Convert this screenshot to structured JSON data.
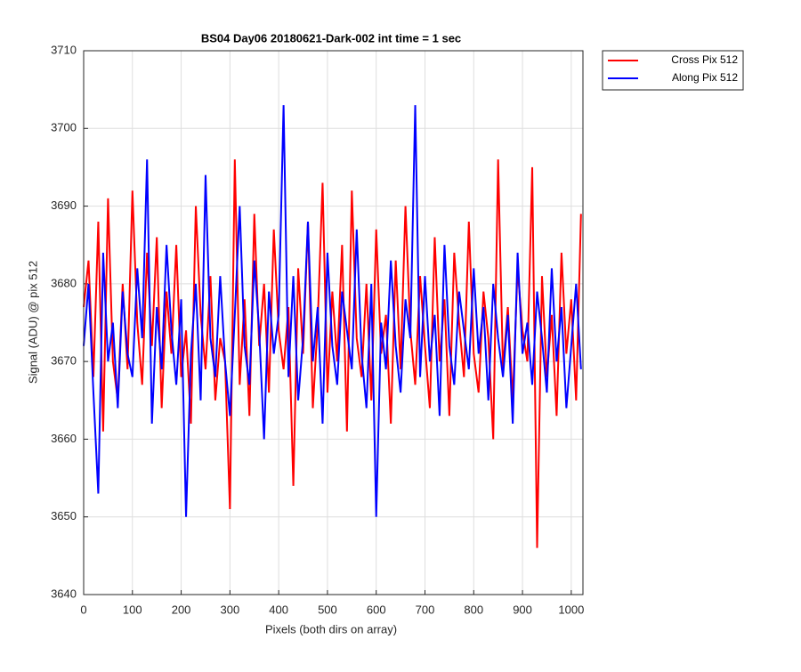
{
  "chart_data": {
    "type": "line",
    "title": "BS04 Day06 20180621-Dark-002 int time = 1 sec",
    "xlabel": "Pixels (both dirs on array)",
    "ylabel": "Signal (ADU) @ pix 512",
    "xlim": [
      0,
      1024
    ],
    "ylim": [
      3640,
      3710
    ],
    "xticks": [
      0,
      100,
      200,
      300,
      400,
      500,
      600,
      700,
      800,
      900,
      1000
    ],
    "yticks": [
      3640,
      3650,
      3660,
      3670,
      3680,
      3690,
      3700,
      3710
    ],
    "grid": true,
    "legend": "outside-top-right",
    "x": [
      0,
      10,
      20,
      30,
      40,
      50,
      60,
      70,
      80,
      90,
      100,
      110,
      120,
      130,
      140,
      150,
      160,
      170,
      180,
      190,
      200,
      210,
      220,
      230,
      240,
      250,
      260,
      270,
      280,
      290,
      300,
      310,
      320,
      330,
      340,
      350,
      360,
      370,
      380,
      390,
      400,
      410,
      420,
      430,
      440,
      450,
      460,
      470,
      480,
      490,
      500,
      510,
      520,
      530,
      540,
      550,
      560,
      570,
      580,
      590,
      600,
      610,
      620,
      630,
      640,
      650,
      660,
      670,
      680,
      690,
      700,
      710,
      720,
      730,
      740,
      750,
      760,
      770,
      780,
      790,
      800,
      810,
      820,
      830,
      840,
      850,
      860,
      870,
      880,
      890,
      900,
      910,
      920,
      930,
      940,
      950,
      960,
      970,
      980,
      990,
      1000,
      1010,
      1020
    ],
    "series": [
      {
        "name": "Cross Pix 512",
        "color": "#ff0000",
        "values": [
          3677,
          3683,
          3668,
          3688,
          3661,
          3691,
          3670,
          3665,
          3680,
          3669,
          3692,
          3675,
          3667,
          3684,
          3672,
          3686,
          3664,
          3679,
          3671,
          3685,
          3668,
          3674,
          3662,
          3690,
          3676,
          3669,
          3681,
          3665,
          3673,
          3670,
          3651,
          3696,
          3667,
          3678,
          3663,
          3689,
          3672,
          3680,
          3666,
          3687,
          3674,
          3669,
          3677,
          3654,
          3682,
          3671,
          3688,
          3664,
          3675,
          3693,
          3666,
          3679,
          3670,
          3685,
          3661,
          3692,
          3673,
          3668,
          3680,
          3665,
          3687,
          3671,
          3676,
          3662,
          3683,
          3669,
          3690,
          3674,
          3667,
          3681,
          3672,
          3664,
          3686,
          3670,
          3678,
          3663,
          3684,
          3675,
          3668,
          3688,
          3671,
          3666,
          3679,
          3673,
          3660,
          3696,
          3669,
          3677,
          3665,
          3682,
          3674,
          3670,
          3695,
          3646,
          3681,
          3668,
          3676,
          3663,
          3684,
          3671,
          3678,
          3665,
          3689
        ]
      },
      {
        "name": "Along Pix 512",
        "color": "#0000ff",
        "values": [
          3672,
          3680,
          3666,
          3653,
          3684,
          3670,
          3675,
          3664,
          3679,
          3671,
          3668,
          3682,
          3673,
          3696,
          3662,
          3677,
          3669,
          3685,
          3674,
          3667,
          3678,
          3650,
          3671,
          3680,
          3665,
          3694,
          3673,
          3668,
          3681,
          3670,
          3663,
          3676,
          3690,
          3672,
          3667,
          3683,
          3674,
          3660,
          3679,
          3671,
          3676,
          3703,
          3668,
          3681,
          3665,
          3673,
          3688,
          3670,
          3677,
          3662,
          3684,
          3672,
          3667,
          3679,
          3674,
          3669,
          3687,
          3671,
          3664,
          3680,
          3650,
          3675,
          3669,
          3683,
          3672,
          3666,
          3678,
          3673,
          3703,
          3668,
          3681,
          3670,
          3676,
          3663,
          3685,
          3672,
          3667,
          3679,
          3674,
          3669,
          3682,
          3671,
          3677,
          3665,
          3680,
          3673,
          3668,
          3676,
          3662,
          3684,
          3671,
          3675,
          3667,
          3679,
          3673,
          3666,
          3682,
          3670,
          3677,
          3664,
          3672,
          3680,
          3669
        ]
      }
    ]
  }
}
